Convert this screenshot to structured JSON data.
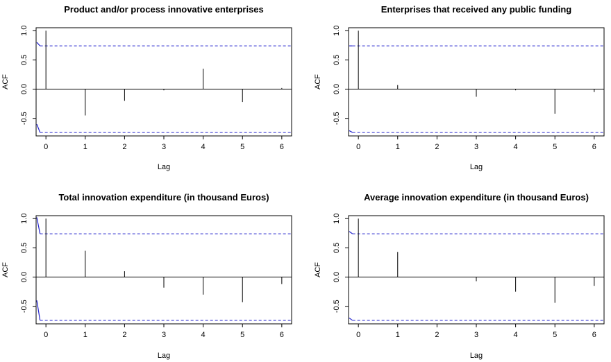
{
  "colors": {
    "bars": "#000000",
    "confidence_band": "#2020cc",
    "zero_line": "#000000",
    "frame": "#000000"
  },
  "chart_data": [
    {
      "type": "bar",
      "title": "Product and/or process innovative enterprises",
      "xlabel": "Lag",
      "ylabel": "ACF",
      "x": [
        0,
        1,
        2,
        3,
        4,
        5,
        6
      ],
      "values": [
        1.0,
        -0.45,
        -0.2,
        -0.02,
        0.35,
        -0.22,
        0.02
      ],
      "ci": [
        0.74,
        -0.74
      ],
      "xlim": [
        -0.25,
        6.25
      ],
      "ylim": [
        -0.8,
        1.05
      ],
      "xticks": [
        0,
        1,
        2,
        3,
        4,
        5,
        6
      ],
      "yticks": [
        -0.5,
        0.0,
        0.5,
        1.0
      ],
      "ytick_labels": [
        "-0.5",
        "0.0",
        "0.5",
        "1.0"
      ],
      "ci_start": {
        "upper": 0.8,
        "lower": -0.6
      }
    },
    {
      "type": "bar",
      "title": "Enterprises that received any public funding",
      "xlabel": "Lag",
      "ylabel": "ACF",
      "x": [
        0,
        1,
        2,
        3,
        4,
        5,
        6
      ],
      "values": [
        1.0,
        0.07,
        0.0,
        -0.13,
        -0.02,
        -0.42,
        -0.05
      ],
      "ci": [
        0.74,
        -0.74
      ],
      "xlim": [
        -0.25,
        6.25
      ],
      "ylim": [
        -0.8,
        1.05
      ],
      "xticks": [
        0,
        1,
        2,
        3,
        4,
        5,
        6
      ],
      "yticks": [
        -0.5,
        0.0,
        0.5,
        1.0
      ],
      "ytick_labels": [
        "-0.5",
        "0.0",
        "0.5",
        "1.0"
      ],
      "ci_start": {
        "upper": 0.74,
        "lower": -0.71
      }
    },
    {
      "type": "bar",
      "title": "Total innovation expenditure (in thousand Euros)",
      "xlabel": "Lag",
      "ylabel": "ACF",
      "x": [
        0,
        1,
        2,
        3,
        4,
        5,
        6
      ],
      "values": [
        1.0,
        0.45,
        0.1,
        -0.18,
        -0.3,
        -0.43,
        -0.12
      ],
      "ci": [
        0.74,
        -0.74
      ],
      "xlim": [
        -0.25,
        6.25
      ],
      "ylim": [
        -0.8,
        1.05
      ],
      "xticks": [
        0,
        1,
        2,
        3,
        4,
        5,
        6
      ],
      "yticks": [
        -0.5,
        0.0,
        0.5,
        1.0
      ],
      "ytick_labels": [
        "-0.5",
        "0.0",
        "0.5",
        "1.0"
      ],
      "ci_start": {
        "upper": 1.02,
        "lower": -0.4
      }
    },
    {
      "type": "bar",
      "title": "Average innovation expenditure (in thousand Euros)",
      "xlabel": "Lag",
      "ylabel": "ACF",
      "x": [
        0,
        1,
        2,
        3,
        4,
        5,
        6
      ],
      "values": [
        1.0,
        0.43,
        0.0,
        -0.07,
        -0.25,
        -0.44,
        -0.15
      ],
      "ci": [
        0.74,
        -0.74
      ],
      "xlim": [
        -0.25,
        6.25
      ],
      "ylim": [
        -0.8,
        1.05
      ],
      "xticks": [
        0,
        1,
        2,
        3,
        4,
        5,
        6
      ],
      "yticks": [
        -0.5,
        0.0,
        0.5,
        1.0
      ],
      "ytick_labels": [
        "-0.5",
        "0.0",
        "0.5",
        "1.0"
      ],
      "ci_start": {
        "upper": 0.78,
        "lower": -0.7
      }
    }
  ]
}
